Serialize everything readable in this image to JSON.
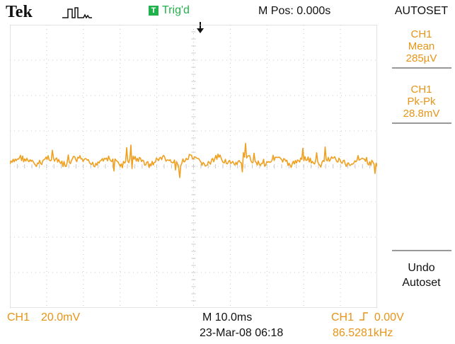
{
  "header": {
    "brand": "Tek",
    "acquire_icon": "pulse-acquire-icon",
    "trigger_badge": "T",
    "trigger_status": "Trig'd",
    "horizontal_position": "M Pos: 0.000s",
    "menu_title": "AUTOSET"
  },
  "side_menu": {
    "measurements": [
      {
        "channel": "CH1",
        "type": "Mean",
        "value": "285µV"
      },
      {
        "channel": "CH1",
        "type": "Pk-Pk",
        "value": "28.8mV"
      }
    ],
    "undo_line1": "Undo",
    "undo_line2": "Autoset"
  },
  "footer": {
    "ch1_label": "CH1",
    "ch1_scale": "20.0mV",
    "timebase": "M 10.0ms",
    "datetime": "23-Mar-08 06:18",
    "trigger_source": "CH1",
    "trigger_level": "0.00V",
    "frequency": "86.5281kHz"
  },
  "colors": {
    "trace": "#f0a020",
    "grid": "#c8c8c8",
    "trigger_green": "#22b14c",
    "readout_orange": "#e89416"
  }
}
